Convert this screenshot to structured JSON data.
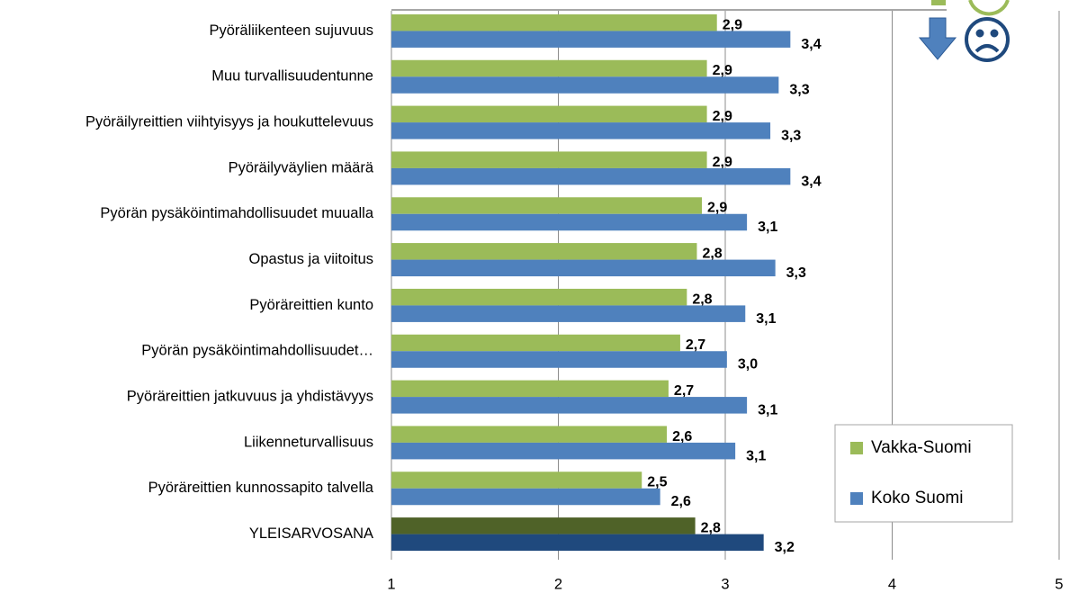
{
  "chart_data": {
    "type": "barh",
    "categories": [
      "Pyöräliikenteen sujuvuus",
      "Muu turvallisuudentunne",
      "Pyöräilyreittien viihtyisyys ja houkuttelevuus",
      "Pyöräilyväylien määrä",
      "Pyörän pysäköintimahdollisuudet muualla",
      "Opastus ja viitoitus",
      "Pyöräreittien kunto",
      "Pyörän pysäköintimahdollisuudet…",
      "Pyöräreittien jatkuvuus ja yhdistävyys",
      "Liikenneturvallisuus",
      "Pyöräreittien kunnossapito talvella",
      "YLEISARVOSANA"
    ],
    "series": [
      {
        "name": "Vakka-Suomi",
        "color": "#9bbb59",
        "label_color": "#4f6228",
        "colors": [
          "#9bbb59",
          "#9bbb59",
          "#9bbb59",
          "#9bbb59",
          "#9bbb59",
          "#9bbb59",
          "#9bbb59",
          "#9bbb59",
          "#9bbb59",
          "#9bbb59",
          "#9bbb59",
          "#4f6228"
        ],
        "values": [
          2.95,
          2.89,
          2.89,
          2.89,
          2.86,
          2.83,
          2.77,
          2.73,
          2.66,
          2.65,
          2.5,
          2.82
        ],
        "value_labels": [
          "2,9",
          "2,9",
          "2,9",
          "2,9",
          "2,9",
          "2,8",
          "2,8",
          "2,7",
          "2,7",
          "2,6",
          "2,5",
          "2,8"
        ]
      },
      {
        "name": "Koko Suomi",
        "color": "#4f81bd",
        "label_color": "#2c5b96",
        "colors": [
          "#4f81bd",
          "#4f81bd",
          "#4f81bd",
          "#4f81bd",
          "#4f81bd",
          "#4f81bd",
          "#4f81bd",
          "#4f81bd",
          "#4f81bd",
          "#4f81bd",
          "#4f81bd",
          "#1f497d"
        ],
        "values": [
          3.39,
          3.32,
          3.27,
          3.39,
          3.13,
          3.3,
          3.12,
          3.01,
          3.13,
          3.06,
          2.61,
          3.23
        ],
        "value_labels": [
          "3,4",
          "3,3",
          "3,3",
          "3,4",
          "3,1",
          "3,3",
          "3,1",
          "3,0",
          "3,1",
          "3,1",
          "2,6",
          "3,2"
        ]
      }
    ],
    "xlim": [
      1,
      5
    ],
    "xticks": [
      1,
      2,
      3,
      4,
      5
    ],
    "grid": true,
    "legend": "lower right"
  }
}
